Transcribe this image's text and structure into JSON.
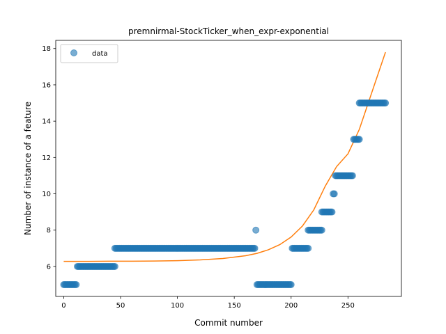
{
  "chart_data": {
    "type": "scatter",
    "title": "premnirmal-StockTicker_when_expr-exponential",
    "xlabel": "Commit number",
    "ylabel": "Number of instance of a feature",
    "xlim": [
      -7,
      297
    ],
    "ylim": [
      4.35,
      18.45
    ],
    "x_ticks": [
      0,
      50,
      100,
      150,
      200,
      250
    ],
    "y_ticks": [
      6,
      8,
      10,
      12,
      14,
      16,
      18
    ],
    "grid": false,
    "legend": {
      "placement": "top-left",
      "entries": [
        "data"
      ]
    },
    "colors": {
      "points": "#1f77b4",
      "fit": "#ff7f0e"
    },
    "point_groups": [
      {
        "x_start": 0,
        "x_end": 11,
        "y": 5
      },
      {
        "x_start": 12,
        "x_end": 45,
        "y": 6
      },
      {
        "x_start": 45,
        "x_end": 168,
        "y": 7
      },
      {
        "x_start": 169,
        "x_end": 169,
        "y": 8
      },
      {
        "x_start": 170,
        "x_end": 200,
        "y": 5
      },
      {
        "x_start": 201,
        "x_end": 215,
        "y": 7
      },
      {
        "x_start": 215,
        "x_end": 227,
        "y": 8
      },
      {
        "x_start": 227,
        "x_end": 236,
        "y": 9
      },
      {
        "x_start": 237,
        "x_end": 238,
        "y": 10
      },
      {
        "x_start": 239,
        "x_end": 254,
        "y": 11
      },
      {
        "x_start": 255,
        "x_end": 260,
        "y": 13
      },
      {
        "x_start": 260,
        "x_end": 283,
        "y": 15
      }
    ],
    "fit_series": {
      "x": [
        0,
        20,
        40,
        60,
        80,
        100,
        120,
        140,
        160,
        170,
        180,
        190,
        200,
        210,
        220,
        230,
        240,
        250,
        260,
        270,
        283
      ],
      "y": [
        6.28,
        6.28,
        6.29,
        6.29,
        6.3,
        6.32,
        6.36,
        6.44,
        6.59,
        6.72,
        6.92,
        7.2,
        7.62,
        8.23,
        9.12,
        10.42,
        11.5,
        12.2,
        13.55,
        15.4,
        17.8
      ]
    }
  }
}
